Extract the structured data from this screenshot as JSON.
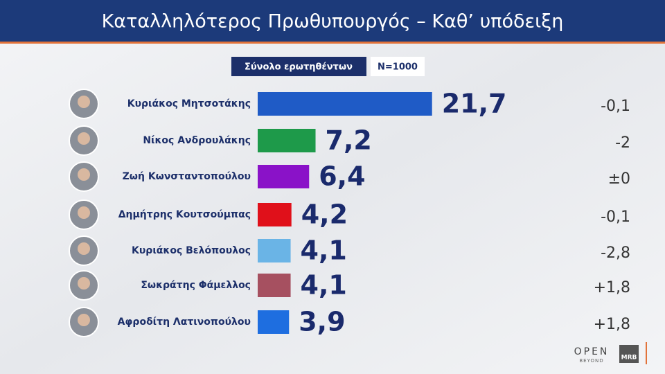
{
  "chart_data": {
    "type": "bar",
    "orientation": "horizontal",
    "title": "Καταλληλότερος  Πρωθυπουργός – Καθ’ υπόδειξη",
    "subtitle": "Σύνολο ερωτηθέντων",
    "sample": "N=1000",
    "categories": [
      "Κυριάκος Μητσοτάκης",
      "Νίκος Ανδρουλάκης",
      "Ζωή Κωνσταντοπούλου",
      "Δημήτρης Κουτσούμπας",
      "Κυριάκος Βελόπουλος",
      "Σωκράτης Φάμελλος",
      "Αφροδίτη Λατινοπούλου"
    ],
    "values": [
      21.7,
      7.2,
      6.4,
      4.2,
      4.1,
      4.1,
      3.9
    ],
    "value_labels": [
      "21,7",
      "7,2",
      "6,4",
      "4,2",
      "4,1",
      "4,1",
      "3,9"
    ],
    "colors": [
      "#1f5bc6",
      "#1e9a4a",
      "#8a12c8",
      "#e0101a",
      "#6ab4e6",
      "#a65060",
      "#1e6ee0"
    ],
    "changes": [
      {
        "value": -0.1,
        "label": "-0,1"
      },
      {
        "value": -2,
        "label": "-2"
      },
      {
        "value": 0,
        "label": "±0"
      },
      {
        "value": -0.1,
        "label": "-0,1"
      },
      {
        "value": -2.8,
        "label": "-2,8"
      },
      {
        "value": 1.8,
        "label": "+1,8"
      },
      {
        "value": 1.8,
        "label": "+1,8"
      }
    ],
    "logos": [
      "OPEN",
      "BEYOND",
      "MRB"
    ]
  }
}
